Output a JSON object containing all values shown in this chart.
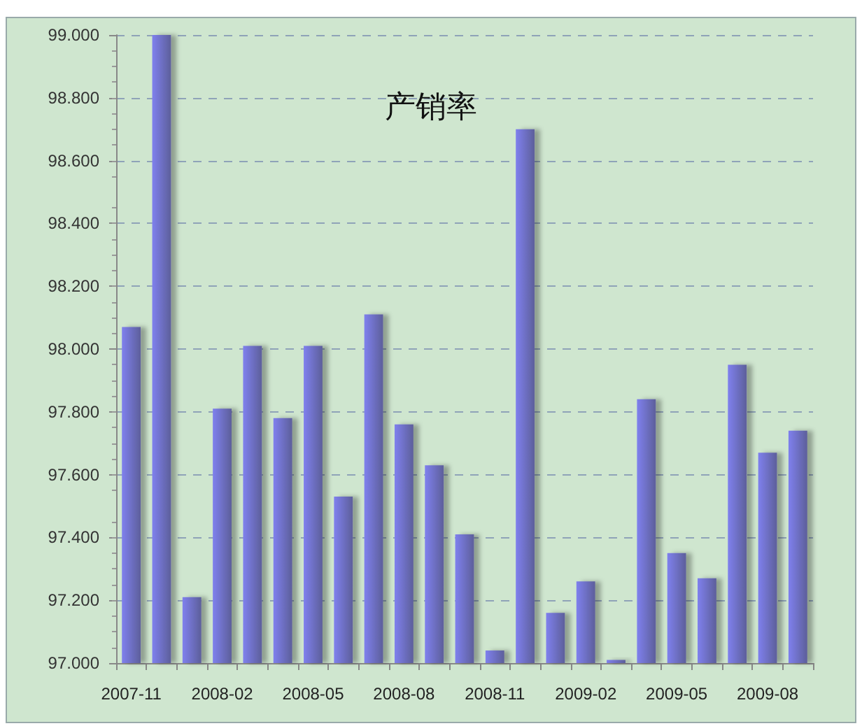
{
  "chart_data": {
    "type": "bar",
    "title": "产销率",
    "categories": [
      "2007-11",
      null,
      null,
      "2008-02",
      null,
      null,
      "2008-05",
      null,
      null,
      "2008-08",
      null,
      null,
      "2008-11",
      null,
      null,
      "2009-02",
      null,
      null,
      "2009-05",
      null,
      null,
      "2009-08",
      null
    ],
    "values": [
      98.07,
      99.0,
      97.21,
      97.81,
      98.01,
      97.78,
      98.01,
      97.53,
      98.11,
      97.76,
      97.63,
      97.41,
      97.04,
      98.7,
      97.16,
      97.26,
      97.01,
      97.84,
      97.35,
      97.27,
      97.95,
      97.67,
      97.74
    ],
    "color": "#7f80ee",
    "ylim": [
      97,
      99
    ],
    "yticks": [
      {
        "value": 97,
        "label": "97.000"
      },
      {
        "value": 97.2,
        "label": "97.200"
      },
      {
        "value": 97.4,
        "label": "97.400"
      },
      {
        "value": 97.6,
        "label": "97.600"
      },
      {
        "value": 97.8,
        "label": "97.800"
      },
      {
        "value": 98,
        "label": "98.000"
      },
      {
        "value": 98.2,
        "label": "98.200"
      },
      {
        "value": 98.4,
        "label": "98.400"
      },
      {
        "value": 98.6,
        "label": "98.600"
      },
      {
        "value": 98.8,
        "label": "98.800"
      },
      {
        "value": 99,
        "label": "99.000"
      }
    ],
    "grid": "y"
  }
}
